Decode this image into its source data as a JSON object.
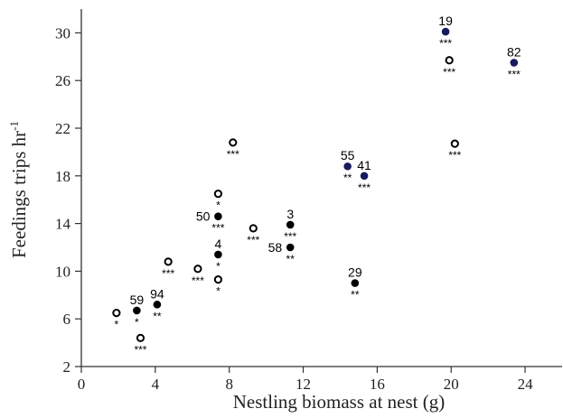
{
  "chart_data": {
    "type": "scatter",
    "title": "",
    "xlabel": "Nestling biomass at nest (g)",
    "ylabel": "Feedings trips hr",
    "ylabel_superscript": "-1",
    "xlim": [
      0,
      26
    ],
    "ylim": [
      2,
      32
    ],
    "x_ticks": [
      0,
      4,
      8,
      12,
      16,
      20,
      24
    ],
    "y_ticks": [
      2,
      6,
      10,
      14,
      18,
      22,
      26,
      30
    ],
    "grid": false,
    "legend": "none",
    "colors": {
      "open": "#000000",
      "filled": "#000000",
      "navy": "#1a1a5e"
    },
    "points": [
      {
        "x": 1.9,
        "y": 6.5,
        "style": "open",
        "label": "",
        "sig": "*"
      },
      {
        "x": 3.0,
        "y": 6.7,
        "style": "filled",
        "label": "59",
        "sig": "*"
      },
      {
        "x": 4.1,
        "y": 7.2,
        "style": "filled",
        "label": "94",
        "sig": "**"
      },
      {
        "x": 3.2,
        "y": 4.4,
        "style": "open",
        "label": "",
        "sig": "***"
      },
      {
        "x": 4.7,
        "y": 10.8,
        "style": "open",
        "label": "",
        "sig": "***"
      },
      {
        "x": 6.3,
        "y": 10.2,
        "style": "open",
        "label": "",
        "sig": "***"
      },
      {
        "x": 7.4,
        "y": 9.3,
        "style": "open",
        "label": "",
        "sig": "*"
      },
      {
        "x": 7.4,
        "y": 11.4,
        "style": "filled",
        "label": "4",
        "sig": "*"
      },
      {
        "x": 7.4,
        "y": 14.6,
        "style": "filled",
        "label": "50",
        "sig": "***"
      },
      {
        "x": 7.4,
        "y": 16.5,
        "style": "open",
        "label": "",
        "sig": "*"
      },
      {
        "x": 8.2,
        "y": 20.8,
        "style": "open",
        "label": "",
        "sig": "***"
      },
      {
        "x": 9.3,
        "y": 13.6,
        "style": "open",
        "label": "",
        "sig": "***"
      },
      {
        "x": 11.3,
        "y": 13.9,
        "style": "filled",
        "label": "3",
        "sig": "***"
      },
      {
        "x": 11.3,
        "y": 12.0,
        "style": "filled",
        "label": "58",
        "sig": "**"
      },
      {
        "x": 14.4,
        "y": 18.8,
        "style": "navy",
        "label": "55",
        "sig": "**"
      },
      {
        "x": 15.3,
        "y": 18.0,
        "style": "navy",
        "label": "41",
        "sig": "***"
      },
      {
        "x": 14.8,
        "y": 9.0,
        "style": "filled",
        "label": "29",
        "sig": "**"
      },
      {
        "x": 19.7,
        "y": 30.1,
        "style": "navy",
        "label": "19",
        "sig": "***"
      },
      {
        "x": 19.9,
        "y": 27.7,
        "style": "open",
        "label": "",
        "sig": "***"
      },
      {
        "x": 20.2,
        "y": 20.7,
        "style": "open",
        "label": "",
        "sig": "***"
      },
      {
        "x": 23.4,
        "y": 27.5,
        "style": "navy",
        "label": "82",
        "sig": "***"
      }
    ]
  }
}
